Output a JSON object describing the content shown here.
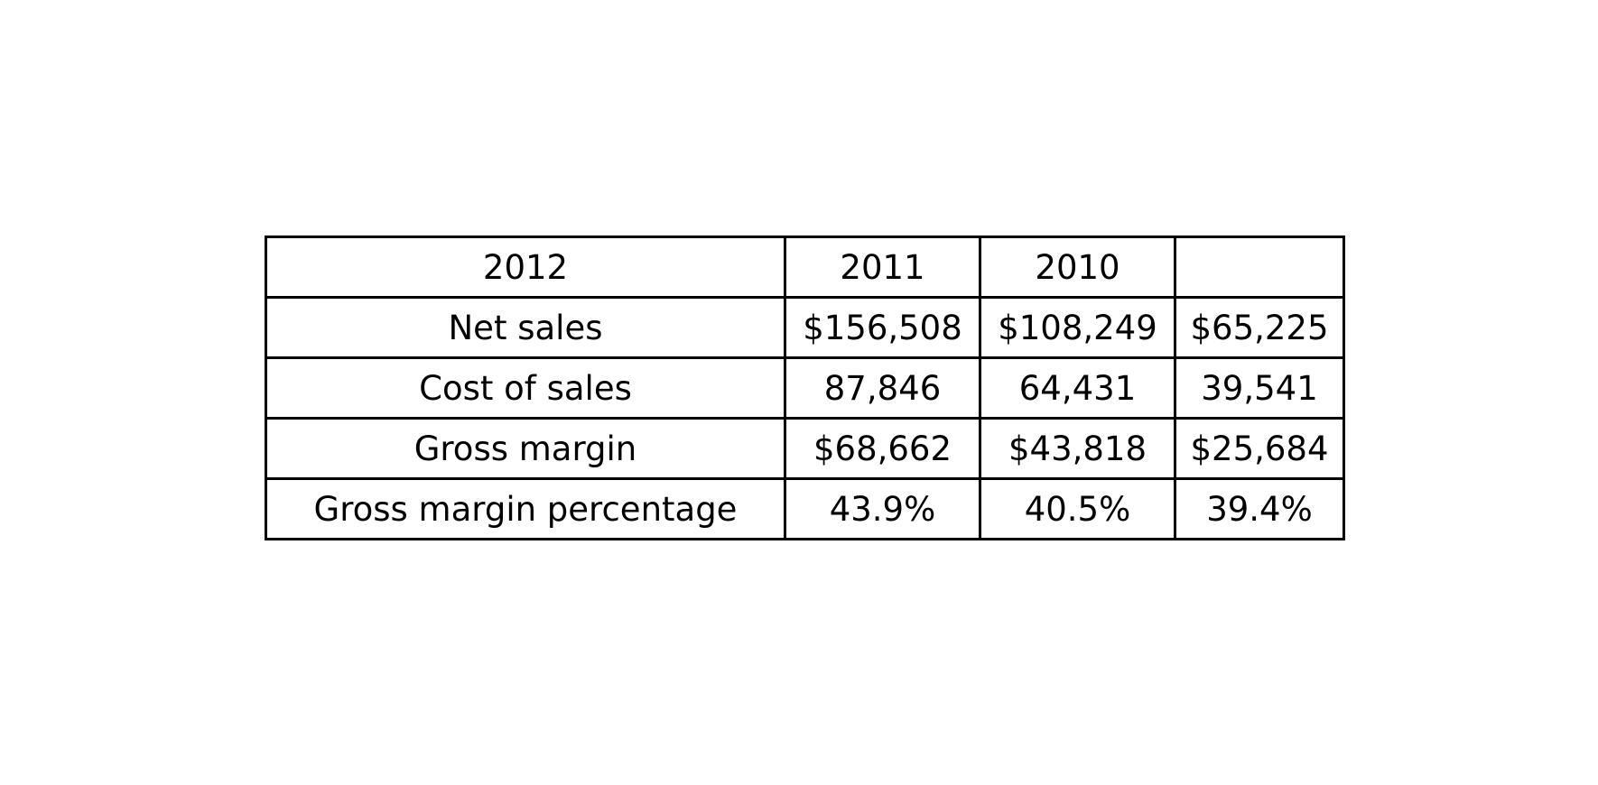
{
  "chart_data": {
    "type": "table",
    "header": [
      "2012",
      "2011",
      "2010",
      ""
    ],
    "rows": [
      [
        "Net sales",
        "$156,508",
        "$108,249",
        "$65,225"
      ],
      [
        "Cost of sales",
        "87,846",
        "64,431",
        "39,541"
      ],
      [
        "Gross margin",
        "$68,662",
        "$43,818",
        "$25,684"
      ],
      [
        "Gross margin percentage",
        "43.9%",
        "40.5%",
        "39.4%"
      ]
    ],
    "colors": {
      "border": "#000000",
      "text": "#000000",
      "background": "#ffffff"
    }
  }
}
